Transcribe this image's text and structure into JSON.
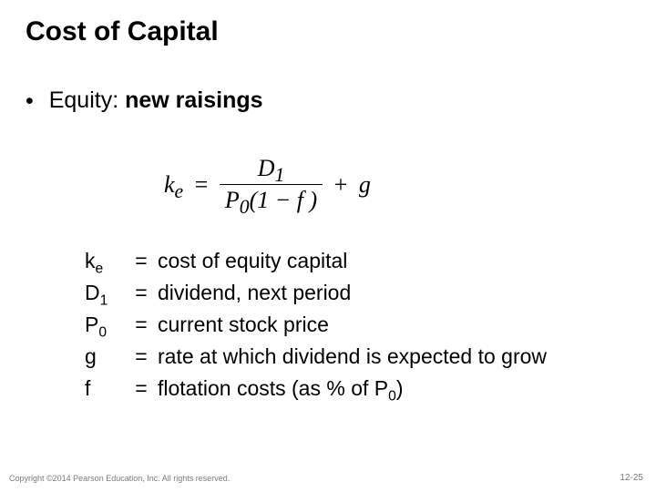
{
  "title": "Cost of Capital",
  "bullet": {
    "lead": "Equity: ",
    "emph": "new raisings"
  },
  "formula": {
    "lhs_base": "k",
    "lhs_sub": "e",
    "num_base": "D",
    "num_sub": "1",
    "den_p_base": "P",
    "den_p_sub": "0",
    "den_rest": "(1 − f )",
    "tail": "g"
  },
  "defs": [
    {
      "sym_base": "k",
      "sym_sub": "e",
      "desc": "cost of equity capital"
    },
    {
      "sym_base": "D",
      "sym_sub": "1",
      "desc": "dividend, next period"
    },
    {
      "sym_base": "P",
      "sym_sub": "0",
      "desc": "current stock price"
    },
    {
      "sym_base": "g",
      "sym_sub": "",
      "desc": "rate at which dividend is expected to grow"
    },
    {
      "sym_base": "f",
      "sym_sub": "",
      "desc_pre": "flotation costs (as % of P",
      "desc_sub": "0",
      "desc_post": ")"
    }
  ],
  "footer": {
    "copyright": "Copyright ©2014 Pearson Education, Inc. All rights reserved.",
    "page": "12-25"
  }
}
